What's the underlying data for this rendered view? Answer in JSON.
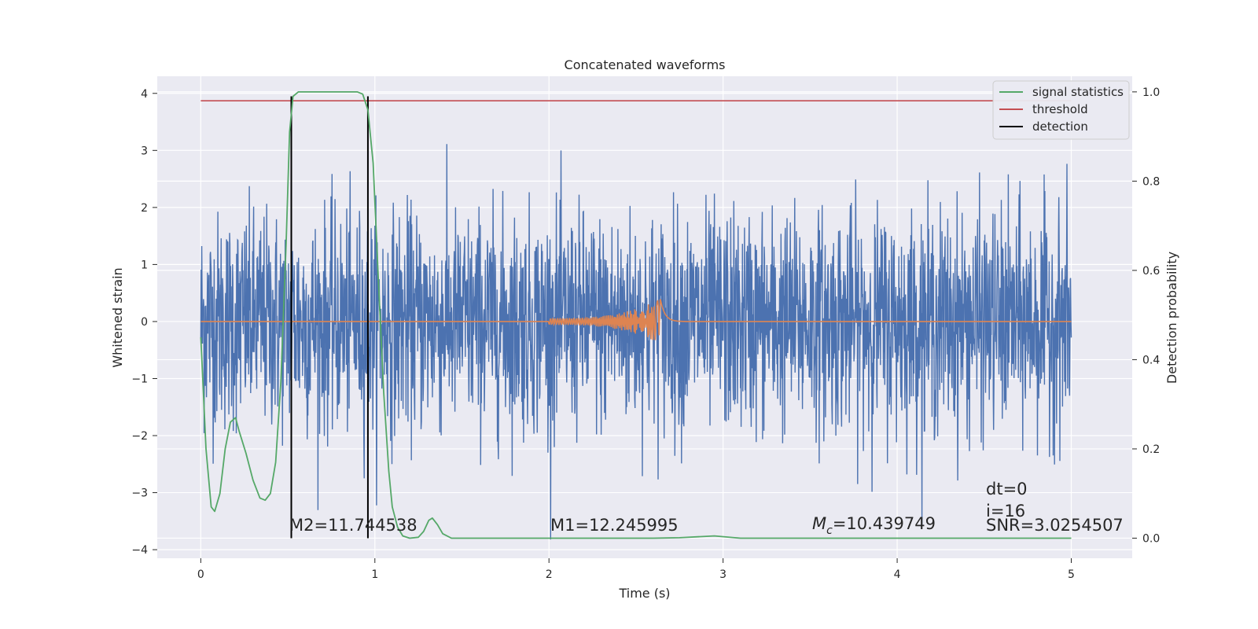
{
  "chart_data": {
    "type": "line",
    "title": "Concatenated waveforms",
    "xlabel": "Time (s)",
    "ylabel": "Whitened strain",
    "ylabel_right": "Detection probability",
    "xlim": [
      -0.25,
      5.35
    ],
    "ylim": [
      -4.15,
      4.3
    ],
    "ylim_right": [
      -0.045,
      1.035
    ],
    "x_ticks": [
      0,
      1,
      2,
      3,
      4,
      5
    ],
    "y_ticks": [
      -4,
      -3,
      -2,
      -1,
      0,
      1,
      2,
      3,
      4
    ],
    "y_ticks_right": [
      0.0,
      0.2,
      0.4,
      0.6,
      0.8,
      1.0
    ],
    "y_ticks_right_labels": [
      "0.0",
      "0.2",
      "0.4",
      "0.6",
      "0.8",
      "1.0"
    ],
    "y_tick_labels": [
      "−4",
      "−3",
      "−2",
      "−1",
      "0",
      "1",
      "2",
      "3",
      "4"
    ],
    "grid": true,
    "legend_placement": "top-right",
    "colors": {
      "background": "#eaeaf2",
      "grid": "#ffffff",
      "strain": "#4c72b0",
      "injected": "#dd8452",
      "signal_statistics": "#55a868",
      "threshold": "#c44e52",
      "detection": "#000000"
    },
    "series": [
      {
        "name": "signal statistics",
        "axis": "right",
        "x": [
          0.0,
          0.03,
          0.06,
          0.08,
          0.11,
          0.14,
          0.17,
          0.2,
          0.22,
          0.26,
          0.3,
          0.34,
          0.37,
          0.4,
          0.43,
          0.46,
          0.49,
          0.51,
          0.53,
          0.56,
          0.6,
          0.8,
          0.9,
          0.93,
          0.96,
          0.99,
          1.02,
          1.05,
          1.08,
          1.1,
          1.13,
          1.16,
          1.2,
          1.25,
          1.28,
          1.31,
          1.33,
          1.36,
          1.39,
          1.44,
          1.6,
          2.6,
          2.75,
          2.95,
          3.1,
          5.0
        ],
        "y": [
          0.45,
          0.2,
          0.07,
          0.06,
          0.1,
          0.2,
          0.26,
          0.27,
          0.24,
          0.19,
          0.13,
          0.09,
          0.085,
          0.1,
          0.17,
          0.35,
          0.66,
          0.91,
          0.99,
          1.0,
          1.0,
          1.0,
          1.0,
          0.995,
          0.96,
          0.84,
          0.58,
          0.33,
          0.15,
          0.07,
          0.025,
          0.005,
          0.0,
          0.002,
          0.015,
          0.04,
          0.045,
          0.03,
          0.01,
          0.0,
          0.0,
          0.0,
          0.001,
          0.005,
          0.0,
          0.0
        ]
      },
      {
        "name": "threshold",
        "axis": "right",
        "x": [
          0,
          5
        ],
        "y": [
          0.98,
          0.98
        ]
      },
      {
        "name": "detection",
        "axis": "right",
        "vertical_lines_x": [
          0.52,
          0.96
        ],
        "y_range": [
          0.0,
          0.99
        ]
      },
      {
        "name": "",
        "axis": "left",
        "description_kind": "whitened noise",
        "x_range": [
          0,
          5
        ],
        "typical_amplitude": 1.0,
        "peak_amplitude": 3.95
      },
      {
        "name": "",
        "axis": "left",
        "description_kind": "injected chirp",
        "x_range": [
          0,
          5
        ],
        "chirp_start": 2.0,
        "merger": 2.64,
        "peak_amplitude": 0.4
      }
    ],
    "legend": [
      "signal statistics",
      "threshold",
      "detection"
    ],
    "annotations": {
      "m2": "M2=11.744538",
      "m1": "M1=12.245995",
      "mc_symbol": "M",
      "mc_sub": "c",
      "mc_value": "=10.439749",
      "dt": "dt=0",
      "i": "i=16",
      "snr": "SNR=3.0254507"
    }
  }
}
